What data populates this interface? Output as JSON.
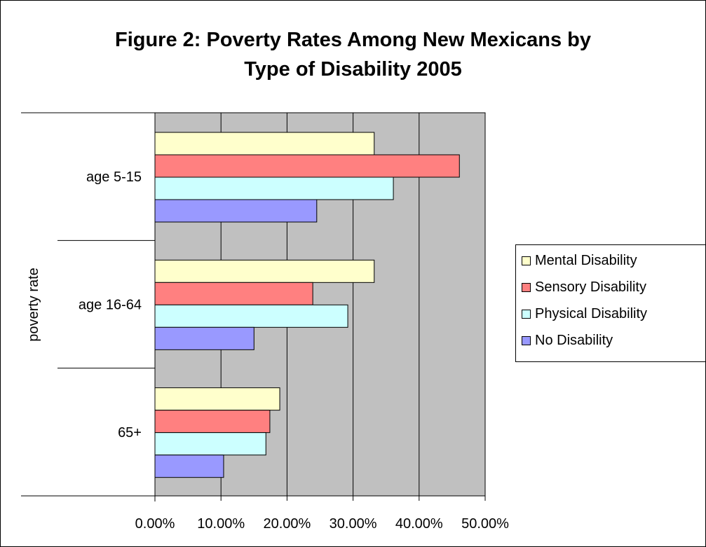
{
  "chart_data": {
    "type": "bar",
    "orientation": "horizontal",
    "title_lines": [
      "Figure 2: Poverty Rates Among New Mexicans by",
      "Type of Disability 2005"
    ],
    "ylabel": "poverty rate",
    "xlabel": "",
    "categories": [
      "age 5-15",
      "age 16-64",
      "65+"
    ],
    "series": [
      {
        "name": "Mental Disability",
        "color": "#ffffcc",
        "values": [
          33.2,
          33.2,
          18.9
        ]
      },
      {
        "name": "Sensory Disability",
        "color": "#ff8080",
        "values": [
          46.1,
          23.9,
          17.4
        ]
      },
      {
        "name": "Physical Disability",
        "color": "#ccffff",
        "values": [
          36.1,
          29.2,
          16.8
        ]
      },
      {
        "name": "No Disability",
        "color": "#9999ff",
        "values": [
          24.5,
          15.0,
          10.4
        ]
      }
    ],
    "xlim": [
      0,
      50
    ],
    "xticks": [
      "0.00%",
      "10.00%",
      "20.00%",
      "30.00%",
      "40.00%",
      "50.00%"
    ],
    "grid": true,
    "plot_background": "#c0c0c0",
    "legend_position": "right"
  }
}
